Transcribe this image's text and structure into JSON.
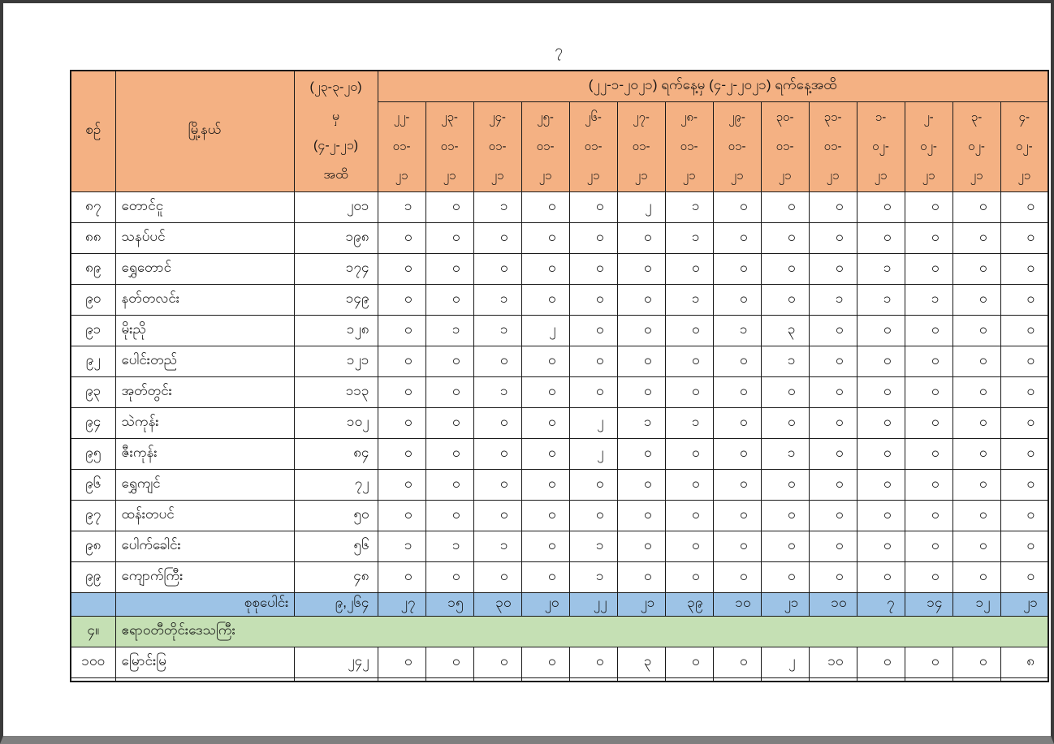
{
  "page": {
    "number": "၇"
  },
  "colors": {
    "header_bg": "#F4B183",
    "total_bg": "#9DC3E6",
    "section_bg": "#C5E0B4",
    "border": "#1a1a1a"
  },
  "table": {
    "header": {
      "serial": "စဉ်",
      "township": "မြို့နယ်",
      "cumulative_lines": [
        "(၂၃-၃-၂၀)",
        "မှ",
        "(၄-၂-၂၁)",
        "အထိ"
      ],
      "period": "(၂၂-၁-၂၀၂၁) ရက်နေ့မှ (၄-၂-၂၀၂၁) ရက်နေ့အထိ",
      "dates": [
        [
          "၂၂-",
          "၀၁-",
          "၂၁"
        ],
        [
          "၂၃-",
          "၀၁-",
          "၂၁"
        ],
        [
          "၂၄-",
          "၀၁-",
          "၂၁"
        ],
        [
          "၂၅-",
          "၀၁-",
          "၂၁"
        ],
        [
          "၂၆-",
          "၀၁-",
          "၂၁"
        ],
        [
          "၂၇-",
          "၀၁-",
          "၂၁"
        ],
        [
          "၂၈-",
          "၀၁-",
          "၂၁"
        ],
        [
          "၂၉-",
          "၀၁-",
          "၂၁"
        ],
        [
          "၃၀-",
          "၀၁-",
          "၂၁"
        ],
        [
          "၃၁-",
          "၀၁-",
          "၂၁"
        ],
        [
          "၁-",
          "၀၂-",
          "၂၁"
        ],
        [
          "၂-",
          "၀၂-",
          "၂၁"
        ],
        [
          "၃-",
          "၀၂-",
          "၂၁"
        ],
        [
          "၄-",
          "၀၂-",
          "၂၁"
        ]
      ]
    },
    "rows": [
      {
        "no": "၈၇",
        "township": "တောင်ငူ",
        "cumulative": "၂၀၁",
        "daily": [
          "၁",
          "၀",
          "၁",
          "၀",
          "၀",
          "၂",
          "၁",
          "၀",
          "၀",
          "၀",
          "၀",
          "၀",
          "၀",
          "၀"
        ]
      },
      {
        "no": "၈၈",
        "township": "သနပ်ပင်",
        "cumulative": "၁၉၈",
        "daily": [
          "၀",
          "၀",
          "၀",
          "၀",
          "၀",
          "၀",
          "၁",
          "၀",
          "၀",
          "၀",
          "၀",
          "၀",
          "၀",
          "၀"
        ]
      },
      {
        "no": "၈၉",
        "township": "ရွှေတောင်",
        "cumulative": "၁၇၄",
        "daily": [
          "၀",
          "၀",
          "၀",
          "၀",
          "၀",
          "၀",
          "၀",
          "၀",
          "၀",
          "၀",
          "၁",
          "၀",
          "၀",
          "၀"
        ]
      },
      {
        "no": "၉၀",
        "township": "နတ်တလင်း",
        "cumulative": "၁၄၉",
        "daily": [
          "၀",
          "၀",
          "၁",
          "၀",
          "၀",
          "၀",
          "၁",
          "၀",
          "၀",
          "၁",
          "၁",
          "၁",
          "၀",
          "၀"
        ]
      },
      {
        "no": "၉၁",
        "township": "မိုးညို",
        "cumulative": "၁၂၈",
        "daily": [
          "၀",
          "၁",
          "၁",
          "၂",
          "၀",
          "၀",
          "၀",
          "၁",
          "၃",
          "၀",
          "၀",
          "၀",
          "၀",
          "၀"
        ]
      },
      {
        "no": "၉၂",
        "township": "ပေါင်းတည်",
        "cumulative": "၁၂၁",
        "daily": [
          "၀",
          "၀",
          "၀",
          "၀",
          "၀",
          "၀",
          "၀",
          "၀",
          "၁",
          "၀",
          "၀",
          "၀",
          "၀",
          "၀"
        ]
      },
      {
        "no": "၉၃",
        "township": "အုတ်တွင်း",
        "cumulative": "၁၁၃",
        "daily": [
          "၀",
          "၀",
          "၁",
          "၀",
          "၀",
          "၀",
          "၀",
          "၀",
          "၀",
          "၀",
          "၀",
          "၀",
          "၀",
          "၀"
        ]
      },
      {
        "no": "၉၄",
        "township": "သဲကုန်း",
        "cumulative": "၁၀၂",
        "daily": [
          "၀",
          "၀",
          "၀",
          "၀",
          "၂",
          "၁",
          "၁",
          "၀",
          "၀",
          "၀",
          "၀",
          "၀",
          "၀",
          "၀"
        ]
      },
      {
        "no": "၉၅",
        "township": "ဇီးကုန်း",
        "cumulative": "၈၄",
        "daily": [
          "၀",
          "၀",
          "၀",
          "၀",
          "၂",
          "၀",
          "၀",
          "၀",
          "၁",
          "၀",
          "၀",
          "၀",
          "၀",
          "၀"
        ]
      },
      {
        "no": "၉၆",
        "township": "ရွှေကျင်",
        "cumulative": "၇၂",
        "daily": [
          "၀",
          "၀",
          "၀",
          "၀",
          "၀",
          "၀",
          "၀",
          "၀",
          "၀",
          "၀",
          "၀",
          "၀",
          "၀",
          "၀"
        ]
      },
      {
        "no": "၉၇",
        "township": "ထန်းတပင်",
        "cumulative": "၅၀",
        "daily": [
          "၀",
          "၀",
          "၀",
          "၀",
          "၀",
          "၀",
          "၀",
          "၀",
          "၀",
          "၀",
          "၀",
          "၀",
          "၀",
          "၀"
        ]
      },
      {
        "no": "၉၈",
        "township": "ပေါက်ခေါင်း",
        "cumulative": "၅၆",
        "daily": [
          "၁",
          "၁",
          "၁",
          "၀",
          "၁",
          "၀",
          "၀",
          "၀",
          "၀",
          "၀",
          "၀",
          "၀",
          "၀",
          "၀"
        ]
      },
      {
        "no": "၉၉",
        "township": "ကျောက်ကြီး",
        "cumulative": "၄၈",
        "daily": [
          "၀",
          "၀",
          "၀",
          "၀",
          "၁",
          "၀",
          "၀",
          "၀",
          "၀",
          "၀",
          "၀",
          "၀",
          "၀",
          "၀"
        ]
      }
    ],
    "total": {
      "label": "စုစုပေါင်း",
      "cumulative": "၉,၂၆၄",
      "daily": [
        "၂၇",
        "၁၅",
        "၃၀",
        "၂၀",
        "၂၂",
        "၂၁",
        "၃၉",
        "၁၀",
        "၂၁",
        "၁၀",
        "၇",
        "၁၄",
        "၁၂",
        "၂၁"
      ]
    },
    "section": {
      "no": "၄။",
      "name": "ဧရာဝတီတိုင်းဒေသကြီး"
    },
    "rows_after_section": [
      {
        "no": "၁၀၀",
        "township": "မြောင်းမြ",
        "cumulative": "၂၄၂",
        "daily": [
          "၀",
          "၀",
          "၀",
          "၀",
          "၀",
          "၃",
          "၀",
          "၀",
          "၂",
          "၁၀",
          "၀",
          "၀",
          "၀",
          "၈"
        ]
      }
    ]
  }
}
